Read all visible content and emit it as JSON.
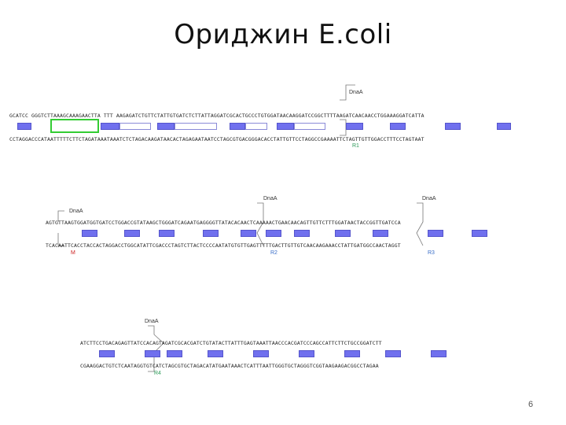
{
  "title": "Ориджин E.coli",
  "page_number": "6",
  "rows": [
    {
      "top": "GCATCC GGGTCTTAAAGCAAAGAACTTA  TTT  AAGAGATCTGTTCTATTGTGATCTCTTATTAGGATCGCACTGCCCTGTGGATAACAAGGATCCGGCTTTTAAGATCAACAACCTGGAAAGGATCATTA",
      "bottom": "CCTAGGACCCATAATTTTTCTTCTAGATAAATAAATCTCTAGACAAGATAACACTAGAGAATAATCCTAGCGTGACGGGACACCTATTGTTCCTAGGCCGAAAATTCTAGTTGTTGGACCTTTCCTAGTAAT",
      "dna_labels": [
        {
          "text": "DnaA"
        }
      ],
      "r_labels": [
        {
          "text": "R1"
        }
      ]
    },
    {
      "top": "AGTGTTAAGTGGATGGTGATCCTGGACCGTATAAGCTGGGATCAGAATGAGGGGTTATACACAACTCAAAAACTGAACAACAGTTGTTCTTTGGATAACTACCGGTTGATCCA",
      "bottom": "TCACAATTCACCTACCACTAGGACCTGGCATATTCGACCCTAGTCTTACTCCCCAATATGTGTTGAGTTTTTGACTTGTTGTCAACAAGAAACCTATTGATGGCCAACTAGGT",
      "dna_labels": [
        {
          "text": "DnaA"
        },
        {
          "text": "DnaA"
        },
        {
          "text": "DnaA"
        }
      ],
      "r_labels": [
        {
          "text": "M"
        },
        {
          "text": "R2"
        },
        {
          "text": "R3"
        }
      ]
    },
    {
      "top": "ATCTTCCTGACAGAGTTATCCACAGTAGATCGCACGATCTGTATACTTATTTGAGTAAATTAACCCACGATCCCAGCCATTCTTCTGCCGGATCTT",
      "bottom": "CGAAGGACTGTCTCAATAGGTGTCATCTAGCGTGCTAGACATATGAATAAACTCATTTAATTGGGTGCTAGGGTCGGTAAGAAGACGGCCTAGAA",
      "dna_labels": [
        {
          "text": "DnaA"
        }
      ],
      "r_labels": [
        {
          "text": "R4"
        }
      ]
    }
  ]
}
